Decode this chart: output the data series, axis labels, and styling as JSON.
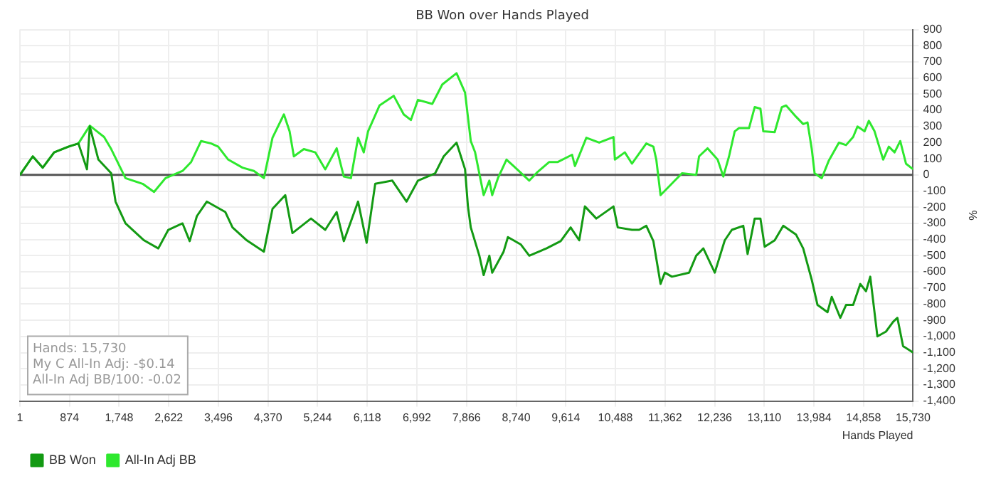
{
  "chart_data": {
    "type": "line",
    "title": "BB Won over Hands Played",
    "xlabel": "Hands Played",
    "ylabel": "%",
    "xlim": [
      1,
      15730
    ],
    "xticks": [
      1,
      {
        "value": 874,
        "label": "874"
      },
      {
        "value": 1748,
        "label": "1,748"
      },
      {
        "value": 2622,
        "label": "2,622"
      },
      {
        "value": 3496,
        "label": "3,496"
      },
      {
        "value": 4370,
        "label": "4,370"
      },
      {
        "value": 5244,
        "label": "5,244"
      },
      {
        "value": 6118,
        "label": "6,118"
      },
      {
        "value": 6992,
        "label": "6,992"
      },
      {
        "value": 7866,
        "label": "7,866"
      },
      {
        "value": 8740,
        "label": "8,740"
      },
      {
        "value": 9614,
        "label": "9,614"
      },
      {
        "value": 10488,
        "label": "10,488"
      },
      {
        "value": 11362,
        "label": "11,362"
      },
      {
        "value": 12236,
        "label": "12,236"
      },
      {
        "value": 13110,
        "label": "13,110"
      },
      {
        "value": 13984,
        "label": "13,984"
      },
      {
        "value": 14858,
        "label": "14,858"
      },
      {
        "value": 15730,
        "label": "15,730"
      }
    ],
    "ylim": [
      -1400,
      900
    ],
    "yticks": [
      {
        "value": -1400,
        "label": "-1,400"
      },
      {
        "value": -1300,
        "label": "-1,300"
      },
      {
        "value": -1200,
        "label": "-1,200"
      },
      {
        "value": -1100,
        "label": "-1,100"
      },
      {
        "value": -1000,
        "label": "-1,000"
      },
      -900,
      -800,
      -700,
      -600,
      -500,
      -400,
      -300,
      -200,
      -100,
      0,
      100,
      200,
      300,
      400,
      500,
      600,
      700,
      800,
      900
    ],
    "grid": true,
    "legend": "bottom left",
    "marker": "none",
    "line_style": "solid",
    "annotations": [
      "Hands: 15,730",
      "My C All-In Adj: -$0.14",
      "All-In Adj BB/100: -0.02"
    ],
    "series": [
      {
        "name": "BB Won",
        "color": "#139a13",
        "x": [
          1,
          227,
          403,
          604,
          855,
          1031,
          1182,
          1232,
          1383,
          1609,
          1685,
          1860,
          2187,
          2438,
          2614,
          2865,
          2991,
          3117,
          3292,
          3619,
          3745,
          3996,
          4298,
          4449,
          4674,
          4800,
          5127,
          5378,
          5579,
          5705,
          5956,
          6107,
          6258,
          6559,
          6810,
          7011,
          7313,
          7464,
          7690,
          7840,
          7891,
          7941,
          8092,
          8168,
          8268,
          8318,
          8519,
          8595,
          8820,
          8971,
          9273,
          9524,
          9700,
          9851,
          9951,
          10152,
          10454,
          10529,
          10780,
          10906,
          11032,
          11157,
          11283,
          11358,
          11484,
          11786,
          11911,
          12037,
          12238,
          12414,
          12539,
          12740,
          12816,
          12941,
          13042,
          13117,
          13293,
          13444,
          13670,
          13795,
          13946,
          14047,
          14223,
          14298,
          14449,
          14550,
          14675,
          14801,
          14901,
          14976,
          15102,
          15253,
          15378,
          15454,
          15554,
          15730
        ],
        "values": [
          0,
          115,
          45,
          140,
          175,
          195,
          35,
          300,
          95,
          10,
          -165,
          -300,
          -405,
          -455,
          -340,
          -300,
          -410,
          -255,
          -165,
          -230,
          -325,
          -405,
          -475,
          -210,
          -125,
          -360,
          -270,
          -340,
          -230,
          -410,
          -165,
          -420,
          -55,
          -35,
          -165,
          -35,
          10,
          115,
          200,
          35,
          -195,
          -325,
          -500,
          -620,
          -500,
          -605,
          -475,
          -385,
          -430,
          -500,
          -455,
          -410,
          -325,
          -405,
          -195,
          -270,
          -195,
          -325,
          -340,
          -340,
          -315,
          -410,
          -675,
          -605,
          -630,
          -605,
          -500,
          -455,
          -605,
          -405,
          -340,
          -315,
          -490,
          -270,
          -270,
          -445,
          -405,
          -315,
          -370,
          -455,
          -650,
          -805,
          -850,
          -755,
          -885,
          -805,
          -805,
          -675,
          -720,
          -630,
          -1000,
          -970,
          -910,
          -885,
          -1060,
          -1100
        ]
      },
      {
        "name": "All-In Adj BB",
        "color": "#2ee82e",
        "x": [
          1,
          227,
          403,
          604,
          855,
          1031,
          1232,
          1358,
          1483,
          1609,
          1860,
          2162,
          2363,
          2564,
          2865,
          3016,
          3192,
          3368,
          3493,
          3669,
          3921,
          4122,
          4298,
          4449,
          4650,
          4750,
          4825,
          5001,
          5202,
          5378,
          5579,
          5705,
          5830,
          5956,
          6056,
          6132,
          6333,
          6584,
          6760,
          6886,
          7011,
          7263,
          7439,
          7690,
          7840,
          7941,
          8017,
          8168,
          8268,
          8318,
          8419,
          8570,
          8695,
          8971,
          9122,
          9323,
          9474,
          9725,
          9775,
          9976,
          10202,
          10454,
          10479,
          10654,
          10780,
          11032,
          11157,
          11208,
          11283,
          11409,
          11534,
          11660,
          11911,
          11961,
          12112,
          12288,
          12388,
          12489,
          12589,
          12665,
          12841,
          12941,
          13042,
          13092,
          13293,
          13418,
          13494,
          13670,
          13795,
          13871,
          13946,
          13996,
          14122,
          14248,
          14424,
          14550,
          14675,
          14751,
          14876,
          14951,
          15052,
          15203,
          15303,
          15404,
          15504,
          15605,
          15730
        ],
        "values": [
          0,
          115,
          45,
          140,
          175,
          195,
          305,
          270,
          235,
          160,
          -20,
          -55,
          -105,
          -20,
          25,
          80,
          210,
          195,
          175,
          95,
          45,
          25,
          -20,
          230,
          375,
          270,
          115,
          160,
          140,
          35,
          165,
          -10,
          -20,
          230,
          140,
          270,
          430,
          490,
          375,
          340,
          465,
          440,
          560,
          630,
          510,
          210,
          140,
          -125,
          -35,
          -125,
          -20,
          95,
          55,
          -35,
          20,
          80,
          80,
          125,
          55,
          230,
          200,
          235,
          95,
          140,
          70,
          195,
          175,
          95,
          -125,
          -80,
          -35,
          10,
          0,
          115,
          165,
          95,
          -10,
          115,
          270,
          290,
          290,
          420,
          410,
          270,
          265,
          420,
          430,
          360,
          315,
          325,
          160,
          10,
          -20,
          90,
          200,
          185,
          235,
          300,
          270,
          335,
          270,
          95,
          175,
          140,
          210,
          70,
          35
        ]
      }
    ]
  }
}
